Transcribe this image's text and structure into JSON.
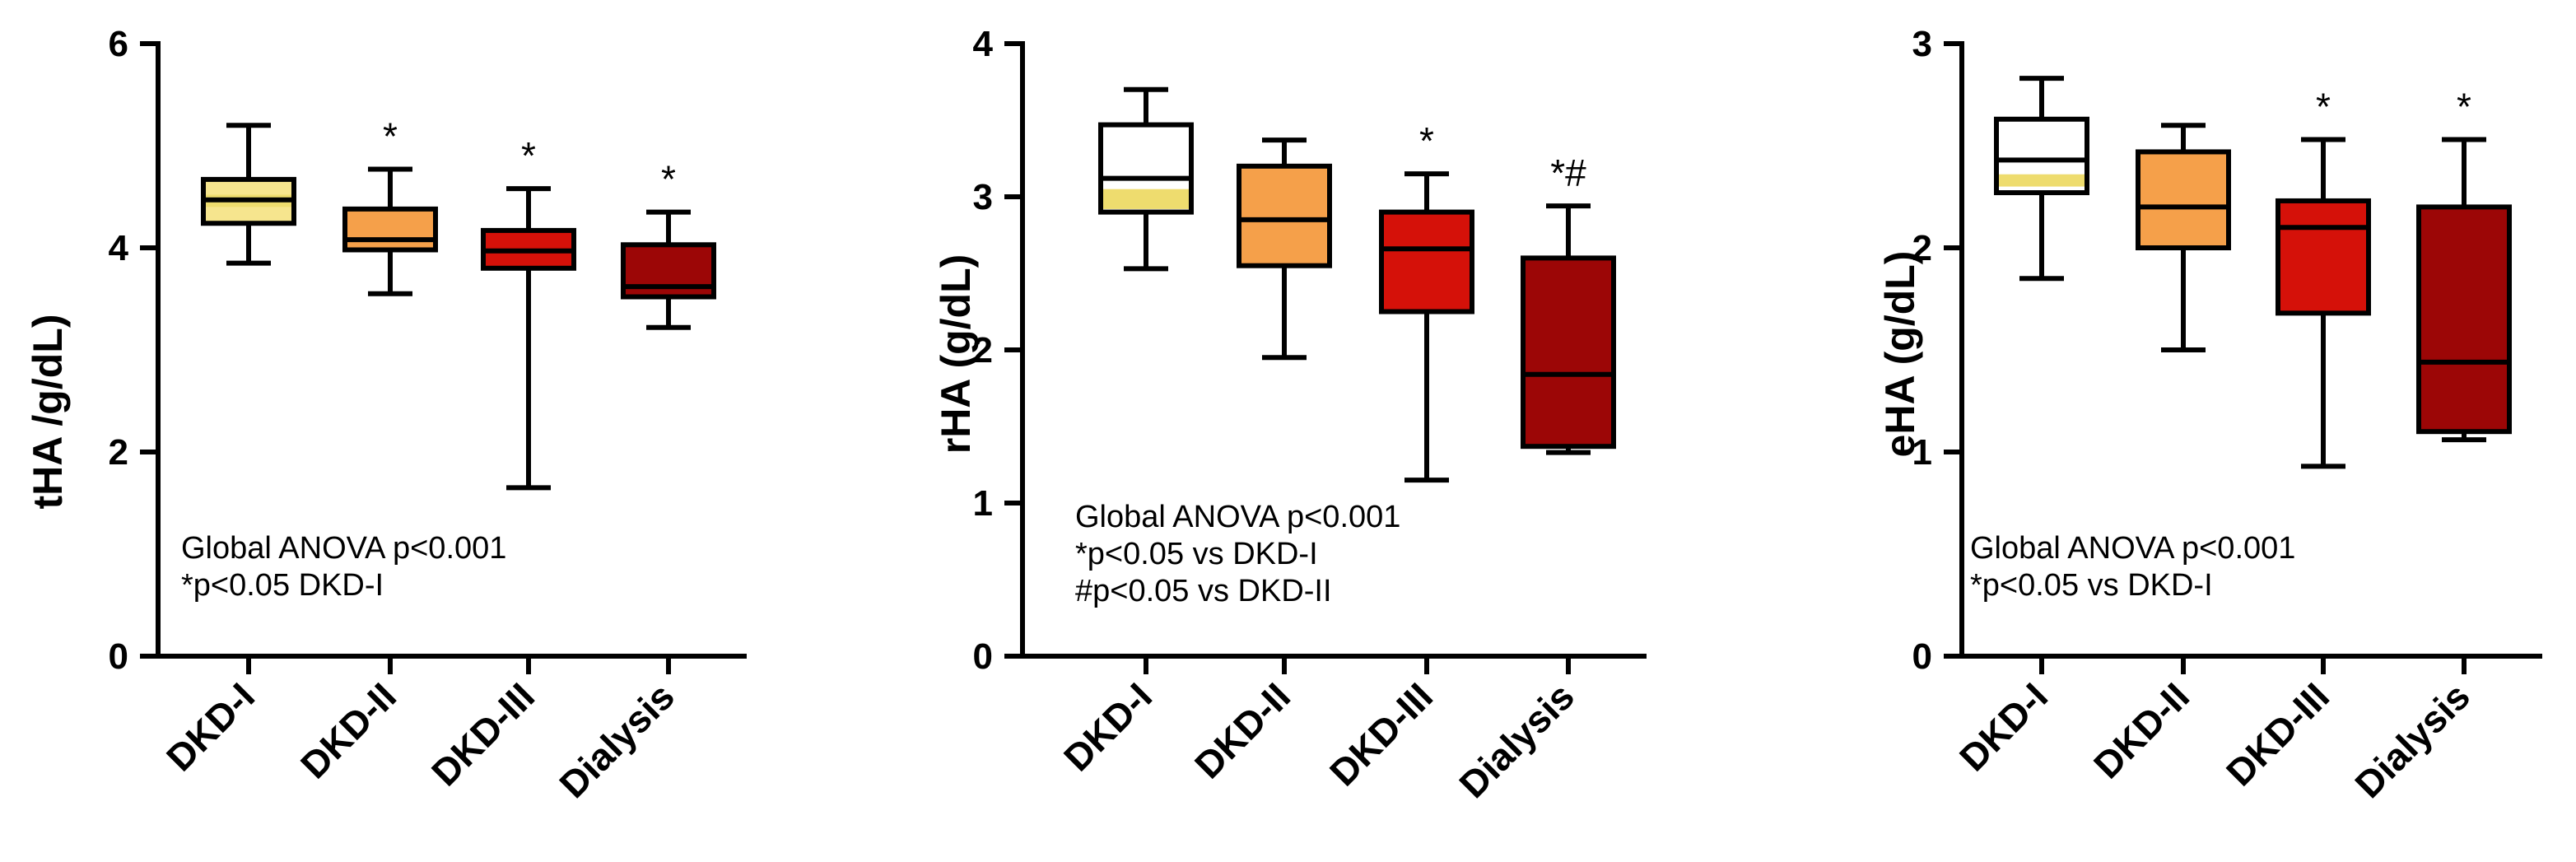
{
  "chart_data": [
    {
      "type": "box",
      "ylabel": "tHA /g/dL)",
      "ylim": [
        0,
        6
      ],
      "yticks": [
        "0",
        "2",
        "4",
        "6"
      ],
      "categories": [
        "DKD-I",
        "DKD-II",
        "DKD-III",
        "Dialysis"
      ],
      "boxes": [
        {
          "min": 3.85,
          "q1": 4.24,
          "median": 4.47,
          "q3": 4.67,
          "max": 5.2,
          "color": "#F6E58E",
          "band": [
            4.4,
            4.52
          ]
        },
        {
          "min": 3.55,
          "q1": 3.98,
          "median": 4.08,
          "q3": 4.38,
          "max": 4.77,
          "color": "#F5A04A"
        },
        {
          "min": 1.65,
          "q1": 3.8,
          "median": 3.97,
          "q3": 4.17,
          "max": 4.58,
          "color": "#D51109"
        },
        {
          "min": 3.22,
          "q1": 3.52,
          "median": 3.62,
          "q3": 4.03,
          "max": 4.35,
          "color": "#9C0606"
        }
      ],
      "markers": [
        "",
        "*",
        "*",
        "*"
      ],
      "annotations": [
        "Global ANOVA p<0.001",
        "*p<0.05 DKD-I"
      ]
    },
    {
      "type": "box",
      "ylabel": "rHA (g/dL)",
      "ylim": [
        0,
        4
      ],
      "yticks": [
        "0",
        "1",
        "2",
        "3",
        "4"
      ],
      "categories": [
        "DKD-I",
        "DKD-II",
        "DKD-III",
        "Dialysis"
      ],
      "boxes": [
        {
          "min": 2.53,
          "q1": 2.9,
          "median": 3.12,
          "q3": 3.47,
          "max": 3.7,
          "color": "#FFFFFF",
          "band": [
            2.92,
            3.05
          ]
        },
        {
          "min": 1.95,
          "q1": 2.55,
          "median": 2.85,
          "q3": 3.2,
          "max": 3.37,
          "color": "#F5A04A"
        },
        {
          "min": 1.15,
          "q1": 2.25,
          "median": 2.66,
          "q3": 2.9,
          "max": 3.15,
          "color": "#D51109"
        },
        {
          "min": 1.33,
          "q1": 1.37,
          "median": 1.84,
          "q3": 2.6,
          "max": 2.94,
          "color": "#9C0606"
        }
      ],
      "markers": [
        "",
        "",
        "*",
        "*#"
      ],
      "annotations": [
        "Global ANOVA p<0.001",
        "*p<0.05 vs DKD-I",
        "#p<0.05 vs DKD-II"
      ]
    },
    {
      "type": "box",
      "ylabel": "eHA (g/dL)",
      "ylim": [
        0,
        3
      ],
      "yticks": [
        "0",
        "1",
        "2",
        "3"
      ],
      "categories": [
        "DKD-I",
        "DKD-II",
        "DKD-III",
        "Dialysis"
      ],
      "boxes": [
        {
          "min": 1.85,
          "q1": 2.27,
          "median": 2.43,
          "q3": 2.63,
          "max": 2.83,
          "color": "#FFFFFF",
          "band": [
            2.3,
            2.36
          ]
        },
        {
          "min": 1.5,
          "q1": 2.0,
          "median": 2.2,
          "q3": 2.47,
          "max": 2.6,
          "color": "#F5A04A"
        },
        {
          "min": 0.93,
          "q1": 1.68,
          "median": 2.1,
          "q3": 2.23,
          "max": 2.53,
          "color": "#D51109"
        },
        {
          "min": 1.06,
          "q1": 1.1,
          "median": 1.44,
          "q3": 2.2,
          "max": 2.53,
          "color": "#9C0606"
        }
      ],
      "markers": [
        "",
        "",
        "*",
        "*"
      ],
      "annotations": [
        "Global ANOVA p<0.001",
        "*p<0.05 vs DKD-I"
      ]
    }
  ]
}
